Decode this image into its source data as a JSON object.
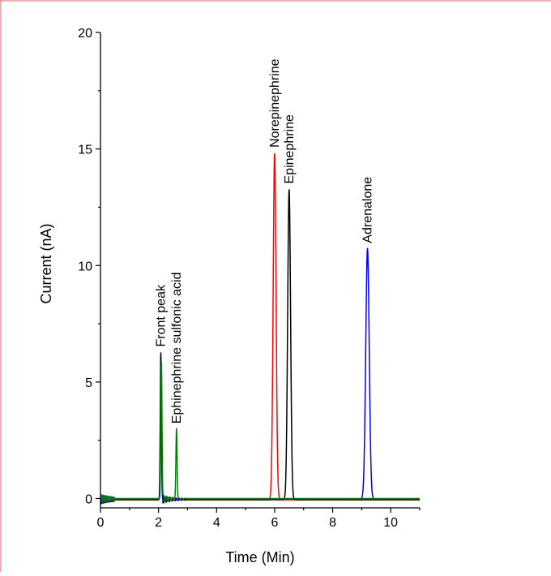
{
  "chart_data": {
    "type": "line",
    "xlabel": "Time (Min)",
    "ylabel": "Current (nA)",
    "xlim": [
      0,
      11
    ],
    "ylim": [
      -0.4,
      20
    ],
    "x_ticks": [
      0,
      2,
      4,
      6,
      8,
      10
    ],
    "y_ticks": [
      0,
      5,
      10,
      15,
      20
    ],
    "grid": false,
    "series": [
      {
        "color": "#ff0000",
        "baseline": -0.05,
        "peaks": [
          {
            "x": 2.09,
            "y": 5.9,
            "width": 0.02
          },
          {
            "x": 6.0,
            "y": 14.85,
            "width": 0.05
          }
        ]
      },
      {
        "color": "#000000",
        "baseline": -0.05,
        "peaks": [
          {
            "x": 2.08,
            "y": 6.3,
            "width": 0.02
          },
          {
            "x": 6.5,
            "y": 13.3,
            "width": 0.05
          }
        ]
      },
      {
        "color": "#0000ff",
        "baseline": -0.02,
        "peaks": [
          {
            "x": 2.09,
            "y": 5.6,
            "width": 0.02
          },
          {
            "x": 9.2,
            "y": 10.75,
            "width": 0.06
          }
        ]
      },
      {
        "color": "#008000",
        "baseline": 0.0,
        "peaks": [
          {
            "x": 2.1,
            "y": 5.85,
            "width": 0.02
          },
          {
            "x": 2.62,
            "y": 3.0,
            "width": 0.02
          }
        ]
      }
    ],
    "annotations": [
      {
        "text": "Front peak",
        "x": 2.08,
        "y": 6.3
      },
      {
        "text": "Ephinephrine sulfonic acid",
        "x": 2.62,
        "y": 3.0
      },
      {
        "text": "Norepinephrine",
        "x": 6.0,
        "y": 14.85
      },
      {
        "text": "Epinephrine",
        "x": 6.5,
        "y": 13.3
      },
      {
        "text": "Adrenalone",
        "x": 9.2,
        "y": 10.75
      }
    ]
  }
}
